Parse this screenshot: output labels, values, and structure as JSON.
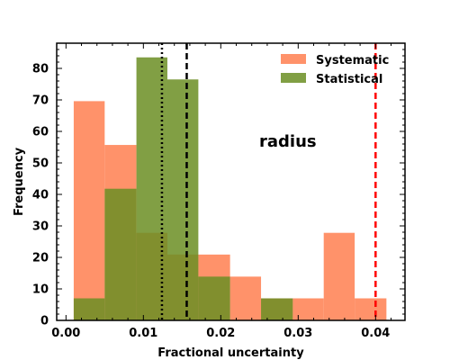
{
  "chart_data": {
    "type": "histogram",
    "xlabel": "Fractional uncertainty",
    "ylabel": "Frequency",
    "xlim": [
      -0.0012,
      0.0438
    ],
    "ylim": [
      0,
      88
    ],
    "xticks": [
      0.0,
      0.01,
      0.02,
      0.03,
      0.04
    ],
    "xtick_labels": [
      "0.00",
      "0.01",
      "0.02",
      "0.03",
      "0.04"
    ],
    "yticks": [
      0,
      10,
      20,
      30,
      40,
      50,
      60,
      70,
      80
    ],
    "ytick_labels": [
      "0",
      "10",
      "20",
      "30",
      "40",
      "50",
      "60",
      "70",
      "80"
    ],
    "grid": false,
    "legend_position": "top-right",
    "annotation": "radius",
    "series": [
      {
        "name": "Systematic",
        "color": "#ff7f50",
        "opacity": 0.85,
        "bins": [
          {
            "x0": 0.001,
            "x1": 0.005,
            "count": 69.6
          },
          {
            "x0": 0.005,
            "x1": 0.0091,
            "count": 55.7
          },
          {
            "x0": 0.0091,
            "x1": 0.0131,
            "count": 27.8
          },
          {
            "x0": 0.0131,
            "x1": 0.0171,
            "count": 20.9
          },
          {
            "x0": 0.0171,
            "x1": 0.0212,
            "count": 20.9
          },
          {
            "x0": 0.0212,
            "x1": 0.0252,
            "count": 13.9
          },
          {
            "x0": 0.0252,
            "x1": 0.0293,
            "count": 7.0
          },
          {
            "x0": 0.0293,
            "x1": 0.0333,
            "count": 7.0
          },
          {
            "x0": 0.0333,
            "x1": 0.0373,
            "count": 27.8
          },
          {
            "x0": 0.0373,
            "x1": 0.0414,
            "count": 7.0
          }
        ]
      },
      {
        "name": "Statistical",
        "color": "#6b8e23",
        "opacity": 0.85,
        "bins": [
          {
            "x0": 0.001,
            "x1": 0.005,
            "count": 7.0
          },
          {
            "x0": 0.005,
            "x1": 0.0091,
            "count": 41.8
          },
          {
            "x0": 0.0091,
            "x1": 0.0131,
            "count": 83.5
          },
          {
            "x0": 0.0131,
            "x1": 0.0171,
            "count": 76.5
          },
          {
            "x0": 0.0171,
            "x1": 0.0212,
            "count": 13.9
          },
          {
            "x0": 0.0212,
            "x1": 0.0252,
            "count": 0
          },
          {
            "x0": 0.0252,
            "x1": 0.0293,
            "count": 7.0
          }
        ]
      }
    ],
    "vlines": [
      {
        "x": 0.0124,
        "color": "#000000",
        "style": "dotted"
      },
      {
        "x": 0.0156,
        "color": "#000000",
        "style": "dashed"
      },
      {
        "x": 0.04,
        "color": "#ff0000",
        "style": "dashed"
      }
    ]
  }
}
